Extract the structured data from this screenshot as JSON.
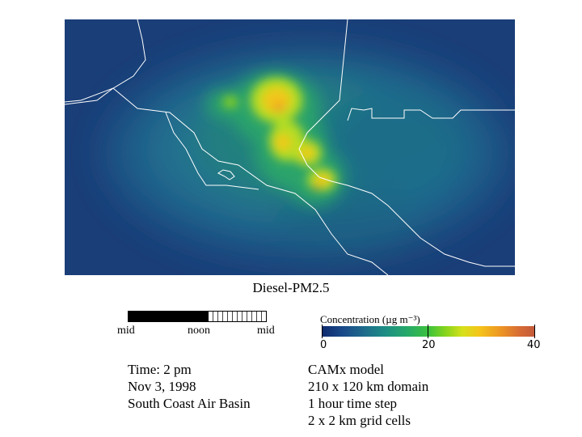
{
  "map": {
    "title": "Diesel-PM2.5",
    "colors": {
      "background": "#1a3e78",
      "coast_line": "#ffffff"
    }
  },
  "timeline": {
    "labels": [
      "mid",
      "noon",
      "mid"
    ],
    "elapsed_fraction": 0.58
  },
  "colorbar": {
    "title": "Concentration (µg m⁻³)",
    "ticks": [
      "0",
      "20",
      "40"
    ],
    "range": [
      0,
      40
    ]
  },
  "info": {
    "time": "Time: 2 pm",
    "date": "Nov 3, 1998",
    "region": "South Coast Air Basin"
  },
  "model": {
    "lines": [
      "CAMx model",
      "210 x 120 km domain",
      "1 hour time step",
      "2 x 2 km grid cells"
    ]
  }
}
